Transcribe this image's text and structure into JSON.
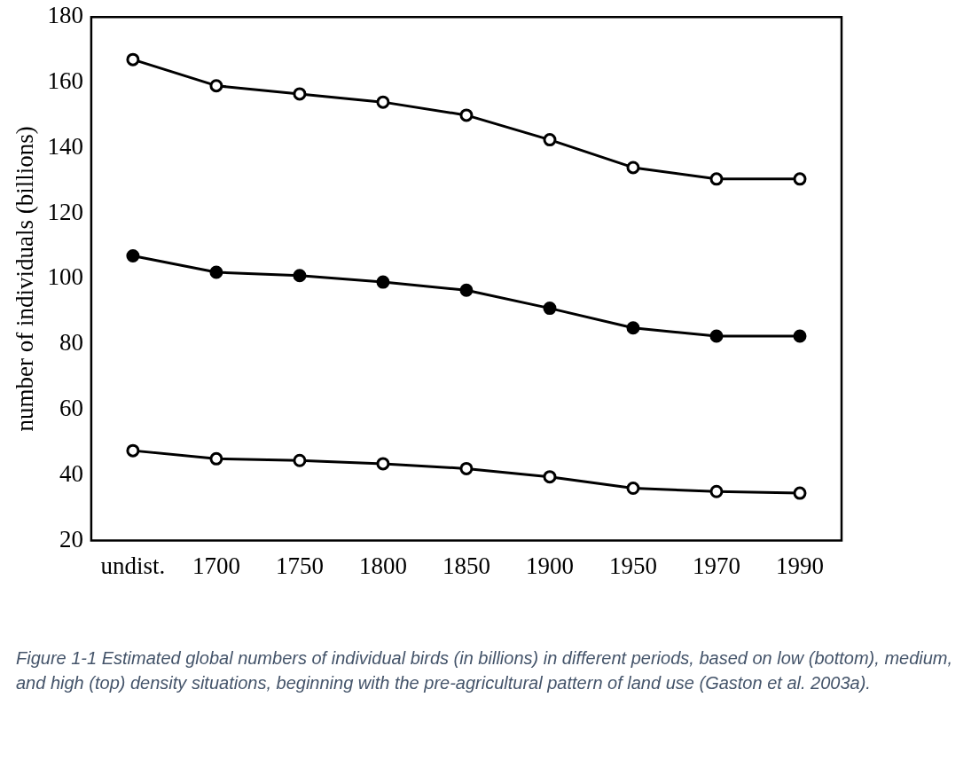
{
  "chart_data": {
    "type": "line",
    "ylabel": "number of individuals (billions)",
    "categories": [
      "undist.",
      "1700",
      "1750",
      "1800",
      "1850",
      "1900",
      "1950",
      "1970",
      "1990"
    ],
    "series": [
      {
        "color": "#000000",
        "values": [
          167,
          159,
          156.5,
          154,
          150,
          142.5,
          134,
          130.5,
          130.5
        ]
      },
      {
        "color": "#000000",
        "values": [
          107,
          102,
          101,
          99,
          96.5,
          91,
          85,
          82.5,
          82.5
        ]
      },
      {
        "color": "#000000",
        "values": [
          47.5,
          45,
          44.5,
          43.5,
          42,
          39.5,
          36,
          35,
          34.5
        ]
      }
    ],
    "ylim": [
      20,
      180
    ],
    "yticks": [
      20,
      40,
      60,
      80,
      100,
      120,
      140,
      160,
      180
    ],
    "grid": false,
    "legend": false,
    "marker": "circle",
    "line_style": "solid",
    "annotations": [
      "Figure 1-1 Estimated global numbers of individual birds (in billions) in different periods, based on low (bottom), medium, and high (top) density situations, beginning with the pre-agricultural pattern of land use (Gaston et al. 2003a)."
    ]
  }
}
